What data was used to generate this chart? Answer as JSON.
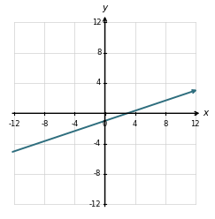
{
  "xlim": [
    -12,
    12
  ],
  "ylim": [
    -12,
    12
  ],
  "xticks": [
    -12,
    -8,
    -4,
    0,
    4,
    8,
    12
  ],
  "yticks": [
    -12,
    -8,
    -4,
    0,
    4,
    8,
    12
  ],
  "xlabel": "x",
  "ylabel": "y",
  "line_color": "#2e6e7e",
  "line_width": 1.4,
  "slope": 0.3333333333333333,
  "intercept": -1.0,
  "background_color": "#ffffff",
  "grid_color": "#d0d0d0",
  "axis_color": "#000000",
  "tick_label_fontsize": 6.0,
  "axis_label_fontsize": 7.5
}
